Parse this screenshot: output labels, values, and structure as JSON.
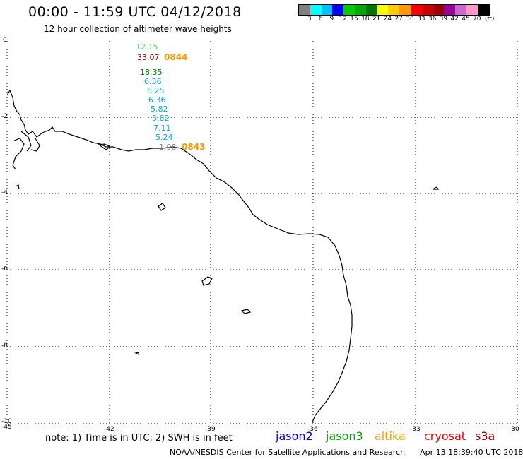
{
  "header": {
    "title": "00:00 - 11:59 UTC 04/12/2018",
    "subtitle": "12 hour collection of altimeter wave heights"
  },
  "colorbar": {
    "unit": "(ft)",
    "colors": [
      "#808080",
      "#00ffff",
      "#00bfff",
      "#0000ff",
      "#00cc00",
      "#00aa00",
      "#007700",
      "#ffff00",
      "#ffcc00",
      "#ff9900",
      "#ff0000",
      "#cc0000",
      "#990000",
      "#990099",
      "#cc66cc",
      "#ff99cc",
      "#000000"
    ],
    "labels": [
      "3",
      "6",
      "9",
      "12",
      "15",
      "18",
      "21",
      "24",
      "27",
      "30",
      "33",
      "36",
      "39",
      "42",
      "45",
      "70"
    ]
  },
  "axes": {
    "x_ticks": [
      "-45",
      "-42",
      "-39",
      "-36",
      "-33",
      "-30"
    ],
    "y_ticks": [
      "0",
      "-2",
      "-4",
      "-6",
      "-8",
      "-10"
    ]
  },
  "wave_values": [
    {
      "text": "12.15",
      "color": "#55dd55"
    },
    {
      "text": "33.07",
      "color": "#990000"
    },
    {
      "text": "18.35",
      "color": "#007700"
    },
    {
      "text": "6.36",
      "color": "#00aadd"
    },
    {
      "text": "6.25",
      "color": "#00aadd"
    },
    {
      "text": "6.36",
      "color": "#00aadd"
    },
    {
      "text": "5.82",
      "color": "#00aadd"
    },
    {
      "text": "5.82",
      "color": "#00aadd"
    },
    {
      "text": "7.11",
      "color": "#00aadd"
    },
    {
      "text": "5.24",
      "color": "#00aadd"
    },
    {
      "text": "1.98",
      "color": "#808080"
    }
  ],
  "pass_times": [
    {
      "text": "0844",
      "color": "#ff9900"
    },
    {
      "text": "0843",
      "color": "#ff9900"
    }
  ],
  "footer": {
    "note": "note: 1) Time is in UTC; 2) SWH is in feet",
    "legend": [
      {
        "name": "jason2",
        "color": "#0000ee"
      },
      {
        "name": "jason3",
        "color": "#00aa00"
      },
      {
        "name": "altika",
        "color": "#ff9900"
      },
      {
        "name": "cryosat",
        "color": "#ee0000"
      },
      {
        "name": "s3a",
        "color": "#990000"
      }
    ],
    "credit": "NOAA/NESDIS Center for Satellite Applications and Research",
    "timestamp": "Apr 13 18:39:40 UTC 2018"
  }
}
